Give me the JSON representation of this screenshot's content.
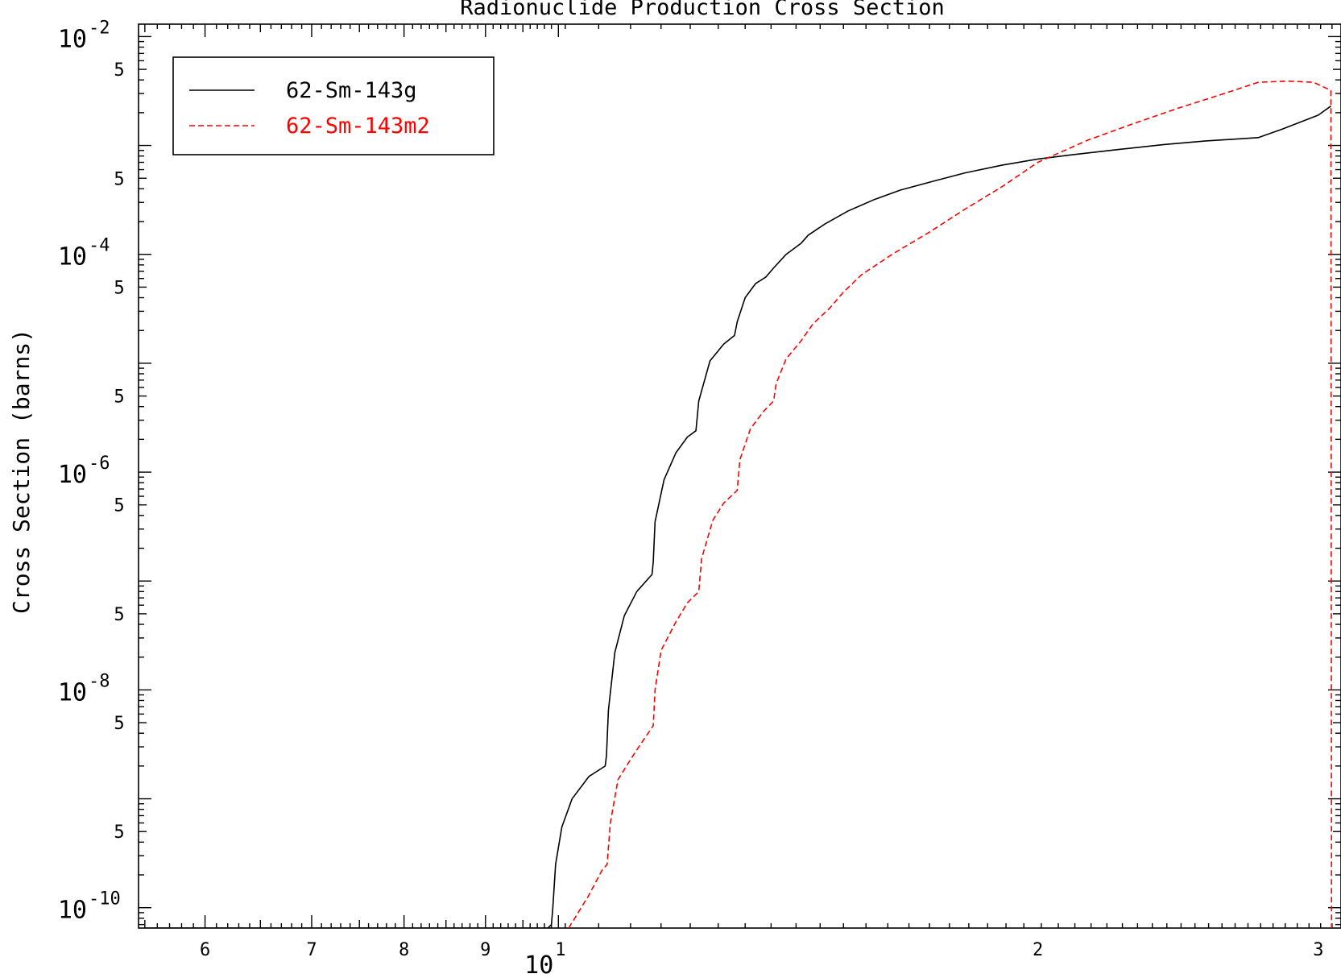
{
  "chart_data": {
    "type": "line",
    "title": "Radionuclide Production Cross Section",
    "ylabel": "Cross Section (barns)",
    "xlabel": "",
    "x_scale": "log",
    "y_scale": "log",
    "xlim": [
      5.45,
      31
    ],
    "ylim": [
      6.5e-11,
      0.013
    ],
    "grid": false,
    "legend_position": "top-left",
    "x_major_tick_labels": [
      {
        "x": 6,
        "label": "6"
      },
      {
        "x": 7,
        "label": "7"
      },
      {
        "x": 8,
        "label": "8"
      },
      {
        "x": 9,
        "label": "9"
      },
      {
        "x": 10,
        "label": "10",
        "base": "10",
        "exp": "1"
      },
      {
        "x": 20,
        "label": "2"
      },
      {
        "x": 30,
        "label": "3"
      }
    ],
    "y_major_tick_labels": [
      {
        "y": 0.01,
        "base": "10",
        "exp": "-2"
      },
      {
        "y": 0.0001,
        "base": "10",
        "exp": "-4"
      },
      {
        "y": 1e-06,
        "base": "10",
        "exp": "-6"
      },
      {
        "y": 1e-08,
        "base": "10",
        "exp": "-8"
      },
      {
        "y": 1e-10,
        "base": "10",
        "exp": "-10"
      }
    ],
    "y_minor_labels": [
      {
        "y": 0.005,
        "label": "5"
      },
      {
        "y": 0.0005,
        "label": "5"
      },
      {
        "y": 5e-05,
        "label": "5"
      },
      {
        "y": 5e-06,
        "label": "5"
      },
      {
        "y": 5e-07,
        "label": "5"
      },
      {
        "y": 5e-08,
        "label": "5"
      },
      {
        "y": 5e-09,
        "label": "5"
      },
      {
        "y": 5e-10,
        "label": "5"
      }
    ],
    "series": [
      {
        "name": "62-Sm-143g",
        "color": "#000000",
        "dash": "solid",
        "points": [
          [
            5.5,
            6.5e-11
          ],
          [
            9.85,
            6.5e-11
          ],
          [
            9.9,
            7e-11
          ],
          [
            9.92,
            1e-10
          ],
          [
            9.96,
            2.5e-10
          ],
          [
            10.05,
            5.5e-10
          ],
          [
            10.2,
            1e-09
          ],
          [
            10.45,
            1.6e-09
          ],
          [
            10.7,
            2e-09
          ],
          [
            10.72,
            2.5e-09
          ],
          [
            10.75,
            6.5e-09
          ],
          [
            10.85,
            2.2e-08
          ],
          [
            11.0,
            4.8e-08
          ],
          [
            11.2,
            8e-08
          ],
          [
            11.45,
            1.15e-07
          ],
          [
            11.47,
            1.5e-07
          ],
          [
            11.5,
            3.5e-07
          ],
          [
            11.65,
            8.5e-07
          ],
          [
            11.85,
            1.5e-06
          ],
          [
            12.05,
            2.1e-06
          ],
          [
            12.2,
            2.4e-06
          ],
          [
            12.25,
            4.5e-06
          ],
          [
            12.45,
            1.05e-05
          ],
          [
            12.7,
            1.5e-05
          ],
          [
            12.9,
            1.8e-05
          ],
          [
            12.95,
            2.4e-05
          ],
          [
            13.1,
            4e-05
          ],
          [
            13.3,
            5.4e-05
          ],
          [
            13.5,
            6.2e-05
          ],
          [
            13.65,
            7.5e-05
          ],
          [
            13.9,
            0.0001
          ],
          [
            14.2,
            0.000126
          ],
          [
            14.35,
            0.00015
          ],
          [
            14.7,
            0.00019
          ],
          [
            15.2,
            0.00025
          ],
          [
            15.8,
            0.00032
          ],
          [
            16.4,
            0.00039
          ],
          [
            17.2,
            0.00047
          ],
          [
            18.0,
            0.00056
          ],
          [
            19.0,
            0.00066
          ],
          [
            20.0,
            0.00075
          ],
          [
            21.0,
            0.00082
          ],
          [
            22.5,
            0.00092
          ],
          [
            24.0,
            0.00102
          ],
          [
            25.5,
            0.0011
          ],
          [
            27.5,
            0.00118
          ],
          [
            28.5,
            0.00142
          ],
          [
            30.0,
            0.0019
          ],
          [
            30.55,
            0.0023
          ]
        ]
      },
      {
        "name": "62-Sm-143m2",
        "color": "#ff0000",
        "dash": "dashed",
        "points": [
          [
            10.15,
            6.5e-11
          ],
          [
            10.45,
            1.3e-10
          ],
          [
            10.65,
            2.2e-10
          ],
          [
            10.73,
            2.5e-10
          ],
          [
            10.78,
            6e-10
          ],
          [
            10.9,
            1.5e-09
          ],
          [
            11.1,
            2.3e-09
          ],
          [
            11.25,
            3.1e-09
          ],
          [
            11.47,
            4.7e-09
          ],
          [
            11.5,
            1e-08
          ],
          [
            11.6,
            2.3e-08
          ],
          [
            11.85,
            4.2e-08
          ],
          [
            12.05,
            6.3e-08
          ],
          [
            12.25,
            8e-08
          ],
          [
            12.3,
            1.6e-07
          ],
          [
            12.5,
            3.6e-07
          ],
          [
            12.7,
            5.2e-07
          ],
          [
            12.95,
            6.8e-07
          ],
          [
            13.0,
            1.3e-06
          ],
          [
            13.2,
            2.5e-06
          ],
          [
            13.45,
            3.6e-06
          ],
          [
            13.65,
            4.5e-06
          ],
          [
            13.7,
            6.5e-06
          ],
          [
            13.9,
            1.1e-05
          ],
          [
            14.2,
            1.6e-05
          ],
          [
            14.45,
            2.3e-05
          ],
          [
            14.8,
            3.2e-05
          ],
          [
            15.1,
            4.5e-05
          ],
          [
            15.5,
            6.5e-05
          ],
          [
            16.2,
            0.0001
          ],
          [
            17.1,
            0.00016
          ],
          [
            18.0,
            0.00026
          ],
          [
            19.0,
            0.00042
          ],
          [
            20.0,
            0.0007
          ],
          [
            21.5,
            0.00112
          ],
          [
            23.0,
            0.0016
          ],
          [
            24.5,
            0.0022
          ],
          [
            26.0,
            0.0029
          ],
          [
            27.5,
            0.0038
          ],
          [
            28.7,
            0.0039
          ],
          [
            29.8,
            0.0038
          ],
          [
            30.55,
            0.0032
          ],
          [
            30.58,
            6.5e-11
          ]
        ]
      }
    ]
  }
}
